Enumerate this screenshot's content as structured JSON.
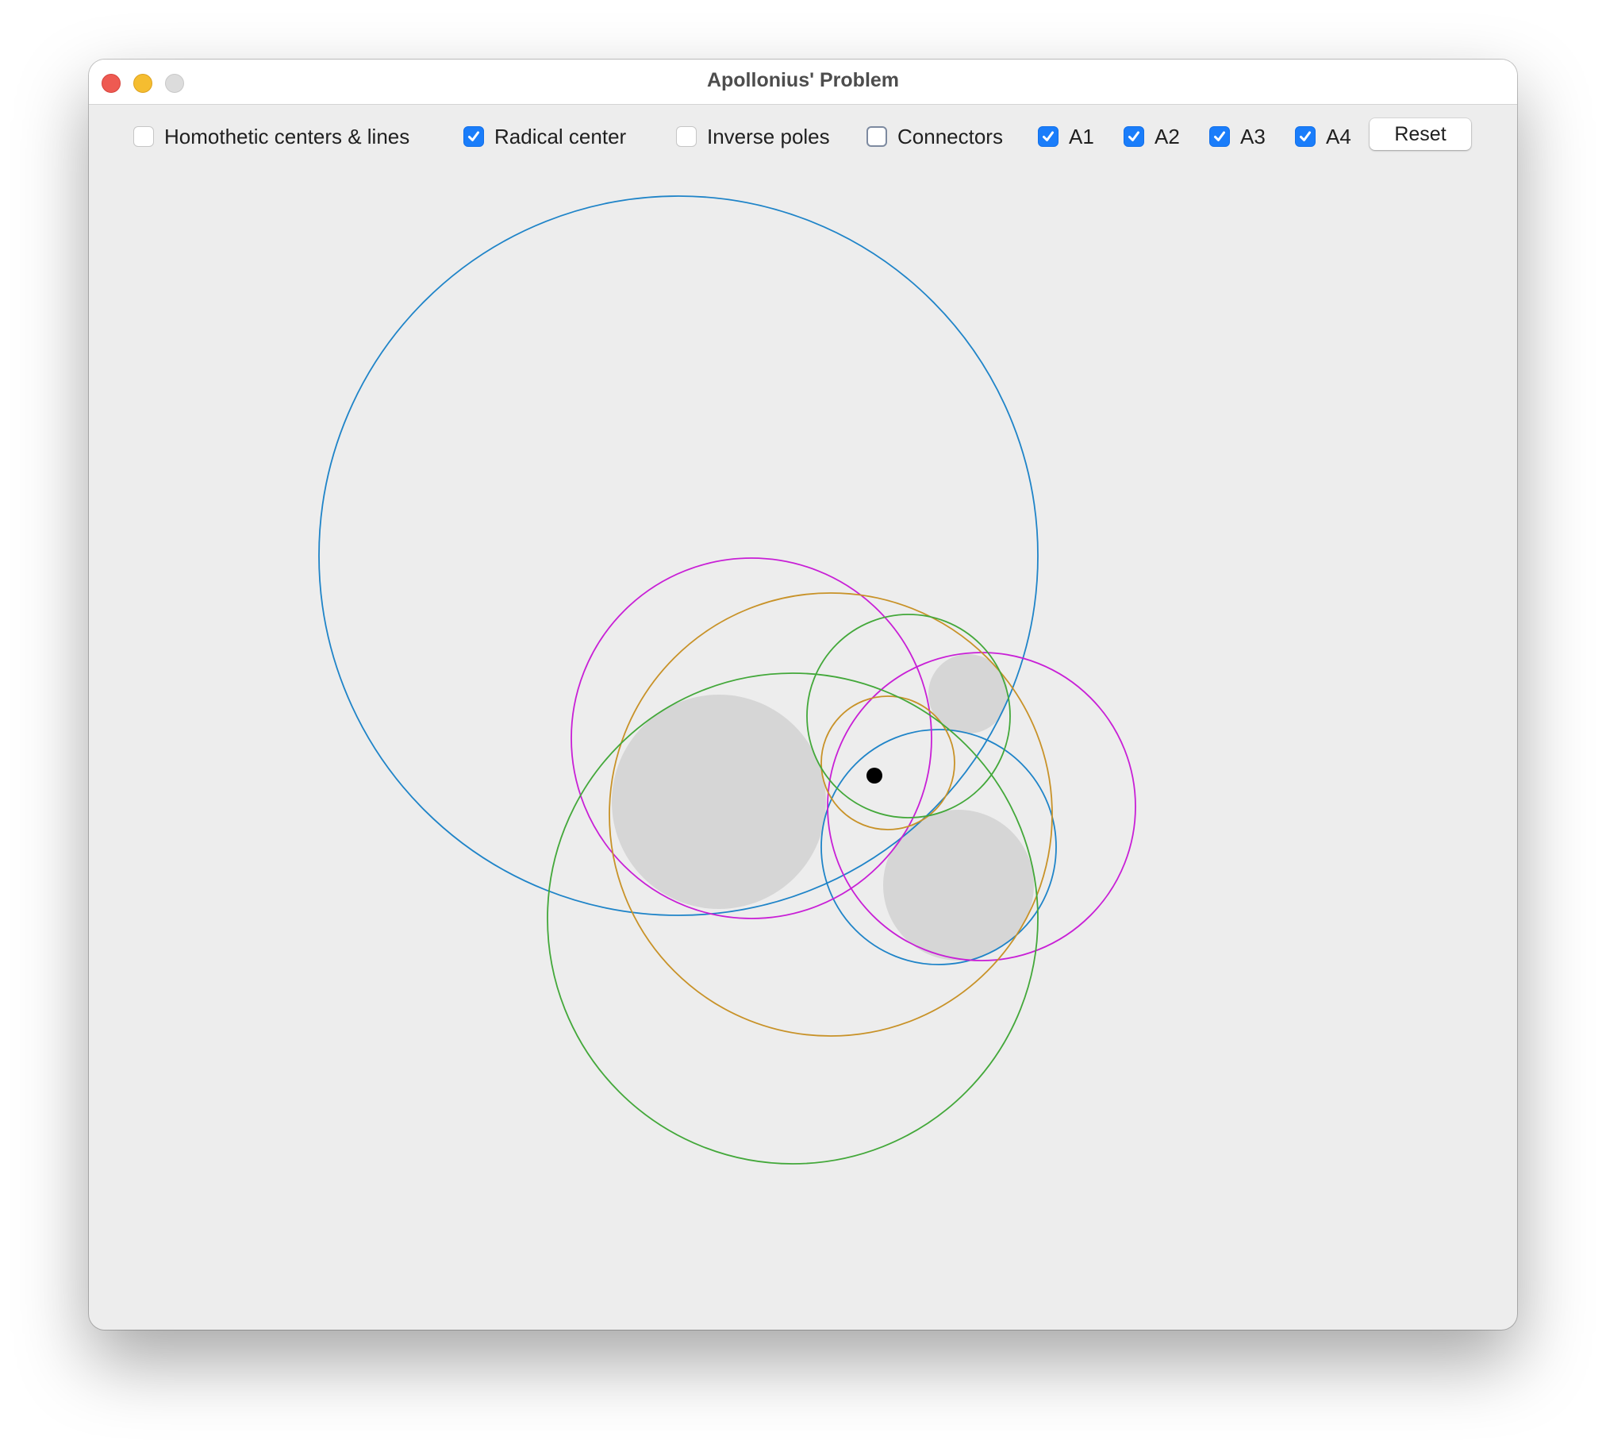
{
  "window": {
    "title": "Apollonius' Problem"
  },
  "toolbar": {
    "options": [
      {
        "label": "Homothetic centers & lines",
        "checked": false
      },
      {
        "label": "Radical center",
        "checked": true
      },
      {
        "label": "Inverse poles",
        "checked": false
      },
      {
        "label": "Connectors",
        "checked": false
      },
      {
        "label": "A1",
        "checked": true
      },
      {
        "label": "A2",
        "checked": true
      },
      {
        "label": "A3",
        "checked": true
      },
      {
        "label": "A4",
        "checked": true
      }
    ],
    "reset_label": "Reset"
  },
  "colors": {
    "given_circle_fill": "#d6d6d6",
    "blue": "#1f84c8",
    "magenta": "#c81fd6",
    "orange": "#c89228",
    "green": "#43a83a",
    "radical_center": "#000000",
    "checkbox_checked": "#1a7dfa"
  },
  "drawing": {
    "given_circles": [
      "large-left",
      "small-top-right",
      "medium-bottom-right"
    ],
    "solution_pairs": [
      {
        "name": "A1",
        "color": "blue"
      },
      {
        "name": "A2",
        "color": "magenta"
      },
      {
        "name": "A3",
        "color": "orange"
      },
      {
        "name": "A4",
        "color": "green"
      }
    ]
  }
}
